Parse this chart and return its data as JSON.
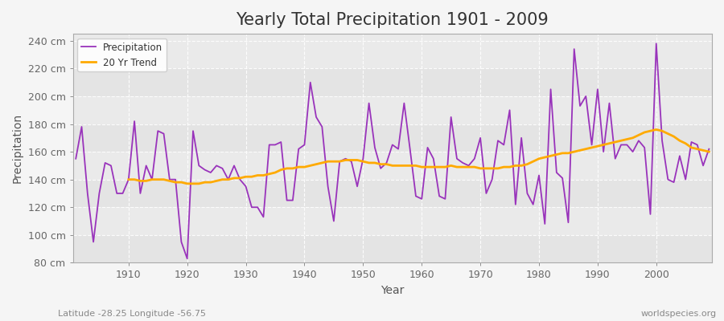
{
  "title": "Yearly Total Precipitation 1901 - 2009",
  "xlabel": "Year",
  "ylabel": "Precipitation",
  "bg_color": "#f5f5f5",
  "plot_bg_color": "#eaeaea",
  "precip_color": "#9933bb",
  "trend_color": "#ffaa00",
  "precip_label": "Precipitation",
  "trend_label": "20 Yr Trend",
  "ylim": [
    80,
    245
  ],
  "yticks": [
    80,
    100,
    120,
    140,
    160,
    180,
    200,
    220,
    240
  ],
  "xticks": [
    1910,
    1920,
    1930,
    1940,
    1950,
    1960,
    1970,
    1980,
    1990,
    2000
  ],
  "years": [
    1901,
    1902,
    1903,
    1904,
    1905,
    1906,
    1907,
    1908,
    1909,
    1910,
    1911,
    1912,
    1913,
    1914,
    1915,
    1916,
    1917,
    1918,
    1919,
    1920,
    1921,
    1922,
    1923,
    1924,
    1925,
    1926,
    1927,
    1928,
    1929,
    1930,
    1931,
    1932,
    1933,
    1934,
    1935,
    1936,
    1937,
    1938,
    1939,
    1940,
    1941,
    1942,
    1943,
    1944,
    1945,
    1946,
    1947,
    1948,
    1949,
    1950,
    1951,
    1952,
    1953,
    1954,
    1955,
    1956,
    1957,
    1958,
    1959,
    1960,
    1961,
    1962,
    1963,
    1964,
    1965,
    1966,
    1967,
    1968,
    1969,
    1970,
    1971,
    1972,
    1973,
    1974,
    1975,
    1976,
    1977,
    1978,
    1979,
    1980,
    1981,
    1982,
    1983,
    1984,
    1985,
    1986,
    1987,
    1988,
    1989,
    1990,
    1991,
    1992,
    1993,
    1994,
    1995,
    1996,
    1997,
    1998,
    1999,
    2000,
    2001,
    2002,
    2003,
    2004,
    2005,
    2006,
    2007,
    2008,
    2009
  ],
  "precipitation": [
    155,
    178,
    130,
    95,
    130,
    152,
    150,
    130,
    130,
    140,
    182,
    130,
    150,
    140,
    175,
    173,
    140,
    140,
    95,
    83,
    175,
    150,
    147,
    145,
    150,
    148,
    140,
    150,
    140,
    135,
    120,
    120,
    113,
    165,
    165,
    167,
    125,
    125,
    162,
    165,
    210,
    185,
    178,
    135,
    110,
    153,
    155,
    153,
    135,
    155,
    195,
    163,
    148,
    152,
    165,
    162,
    195,
    162,
    128,
    126,
    163,
    155,
    128,
    126,
    185,
    155,
    152,
    150,
    155,
    170,
    130,
    140,
    168,
    165,
    190,
    122,
    170,
    130,
    122,
    143,
    108,
    205,
    145,
    141,
    109,
    234,
    193,
    200,
    165,
    205,
    160,
    195,
    155,
    165,
    165,
    160,
    168,
    163,
    115,
    238,
    168,
    140,
    138,
    157,
    140,
    167,
    165,
    150,
    162
  ],
  "trend": [
    null,
    null,
    null,
    null,
    null,
    null,
    null,
    null,
    null,
    140,
    140,
    139,
    139,
    140,
    140,
    140,
    139,
    138,
    138,
    137,
    137,
    137,
    138,
    138,
    139,
    140,
    140,
    141,
    141,
    142,
    142,
    143,
    143,
    144,
    145,
    147,
    148,
    148,
    149,
    149,
    150,
    151,
    152,
    153,
    153,
    153,
    154,
    154,
    154,
    153,
    152,
    152,
    151,
    151,
    150,
    150,
    150,
    150,
    150,
    149,
    149,
    149,
    149,
    149,
    150,
    149,
    149,
    149,
    149,
    148,
    148,
    148,
    148,
    149,
    149,
    150,
    150,
    151,
    153,
    155,
    156,
    157,
    158,
    159,
    159,
    160,
    161,
    162,
    163,
    164,
    165,
    166,
    167,
    168,
    169,
    170,
    172,
    174,
    175,
    176,
    175,
    173,
    171,
    168,
    166,
    163,
    162,
    161,
    160
  ],
  "watermark": "worldspecies.org",
  "footnote": "Latitude -28.25 Longitude -56.75",
  "title_fontsize": 15,
  "axis_fontsize": 10,
  "tick_fontsize": 9,
  "precip_linewidth": 1.3,
  "trend_linewidth": 2.0
}
